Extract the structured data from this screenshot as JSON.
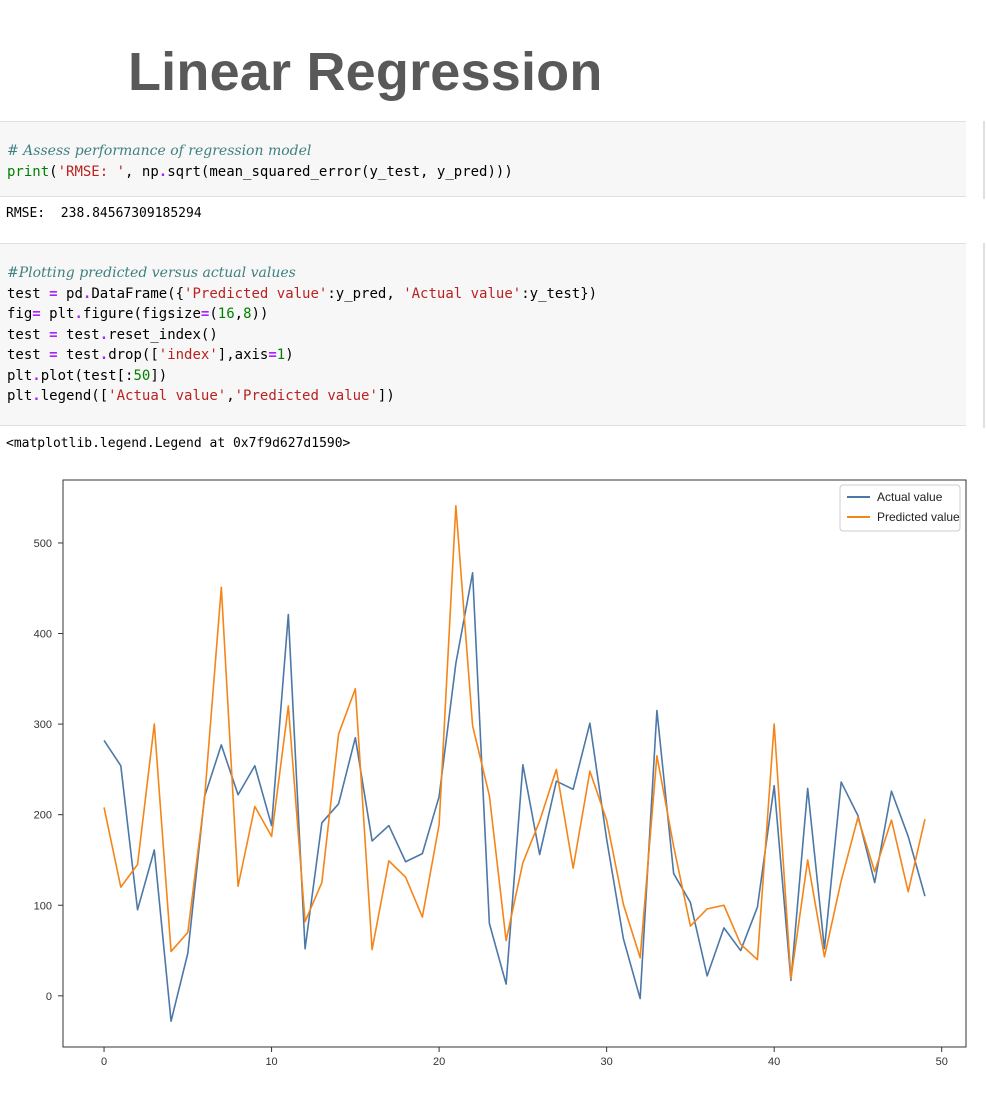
{
  "slide": {
    "title": "Linear Regression"
  },
  "cell1": {
    "lines": [
      [
        {
          "t": "# Assess performance of regression model",
          "c": "cm"
        }
      ],
      [
        {
          "t": "print",
          "c": "kw"
        },
        {
          "t": "(",
          "c": ""
        },
        {
          "t": "'RMSE: '",
          "c": "str"
        },
        {
          "t": ", np",
          "c": ""
        },
        {
          "t": ".",
          "c": "op"
        },
        {
          "t": "sqrt(mean_squared_error(y_test, y_pred)))",
          "c": ""
        }
      ]
    ],
    "output": "RMSE:  238.84567309185294"
  },
  "cell2": {
    "lines": [
      [
        {
          "t": "#Plotting predicted versus actual values",
          "c": "cm"
        }
      ],
      [
        {
          "t": "test ",
          "c": ""
        },
        {
          "t": "=",
          "c": "op"
        },
        {
          "t": " pd",
          "c": ""
        },
        {
          "t": ".",
          "c": "op"
        },
        {
          "t": "DataFrame({",
          "c": ""
        },
        {
          "t": "'Predicted value'",
          "c": "str"
        },
        {
          "t": ":y_pred, ",
          "c": ""
        },
        {
          "t": "'Actual value'",
          "c": "str"
        },
        {
          "t": ":y_test})",
          "c": ""
        }
      ],
      [
        {
          "t": "fig",
          "c": ""
        },
        {
          "t": "=",
          "c": "op"
        },
        {
          "t": " plt",
          "c": ""
        },
        {
          "t": ".",
          "c": "op"
        },
        {
          "t": "figure(figsize",
          "c": ""
        },
        {
          "t": "=",
          "c": "op"
        },
        {
          "t": "(",
          "c": ""
        },
        {
          "t": "16",
          "c": "num"
        },
        {
          "t": ",",
          "c": ""
        },
        {
          "t": "8",
          "c": "num"
        },
        {
          "t": "))",
          "c": ""
        }
      ],
      [
        {
          "t": "test ",
          "c": ""
        },
        {
          "t": "=",
          "c": "op"
        },
        {
          "t": " test",
          "c": ""
        },
        {
          "t": ".",
          "c": "op"
        },
        {
          "t": "reset_index()",
          "c": ""
        }
      ],
      [
        {
          "t": "test ",
          "c": ""
        },
        {
          "t": "=",
          "c": "op"
        },
        {
          "t": " test",
          "c": ""
        },
        {
          "t": ".",
          "c": "op"
        },
        {
          "t": "drop([",
          "c": ""
        },
        {
          "t": "'index'",
          "c": "str"
        },
        {
          "t": "],axis",
          "c": ""
        },
        {
          "t": "=",
          "c": "op"
        },
        {
          "t": "1",
          "c": "num"
        },
        {
          "t": ")",
          "c": ""
        }
      ],
      [
        {
          "t": "plt",
          "c": ""
        },
        {
          "t": ".",
          "c": "op"
        },
        {
          "t": "plot(test[:",
          "c": ""
        },
        {
          "t": "50",
          "c": "num"
        },
        {
          "t": "])",
          "c": ""
        }
      ],
      [
        {
          "t": "plt",
          "c": ""
        },
        {
          "t": ".",
          "c": "op"
        },
        {
          "t": "legend([",
          "c": ""
        },
        {
          "t": "'Actual value'",
          "c": "str"
        },
        {
          "t": ",",
          "c": ""
        },
        {
          "t": "'Predicted value'",
          "c": "str"
        },
        {
          "t": "])",
          "c": ""
        }
      ]
    ],
    "output": "<matplotlib.legend.Legend at 0x7f9d627d1590>"
  },
  "chart_data": {
    "type": "line",
    "x": [
      0,
      1,
      2,
      3,
      4,
      5,
      6,
      7,
      8,
      9,
      10,
      11,
      12,
      13,
      14,
      15,
      16,
      17,
      18,
      19,
      20,
      21,
      22,
      23,
      24,
      25,
      26,
      27,
      28,
      29,
      30,
      31,
      32,
      33,
      34,
      35,
      36,
      37,
      38,
      39,
      40,
      41,
      42,
      43,
      44,
      45,
      46,
      47,
      48,
      49
    ],
    "series": [
      {
        "name": "Actual value",
        "color": "#4c78a8",
        "values": [
          282,
          254,
          95,
          161,
          -28,
          47,
          220,
          277,
          222,
          254,
          188,
          421,
          52,
          191,
          212,
          285,
          171,
          188,
          148,
          157,
          220,
          367,
          467,
          80,
          13,
          255,
          156,
          237,
          228,
          301,
          173,
          63,
          -3,
          315,
          135,
          103,
          22,
          75,
          50,
          98,
          232,
          17,
          229,
          52,
          236,
          199,
          125,
          226,
          176,
          110
        ]
      },
      {
        "name": "Predicted value",
        "color": "#f58518",
        "values": [
          208,
          120,
          145,
          300,
          49,
          70,
          218,
          451,
          121,
          209,
          176,
          320,
          82,
          125,
          289,
          339,
          51,
          149,
          131,
          87,
          189,
          541,
          298,
          221,
          61,
          147,
          193,
          250,
          141,
          248,
          194,
          101,
          42,
          265,
          165,
          77,
          96,
          100,
          57,
          40,
          300,
          19,
          150,
          43,
          127,
          197,
          137,
          194,
          115,
          195
        ]
      }
    ],
    "xticks": [
      0,
      10,
      20,
      30,
      40,
      50
    ],
    "yticks": [
      0,
      100,
      200,
      300,
      400,
      500
    ],
    "xlim": [
      -2.45,
      51.45
    ],
    "ylim": [
      -56.5,
      569.5
    ],
    "legend_position": "upper right",
    "grid": false
  }
}
